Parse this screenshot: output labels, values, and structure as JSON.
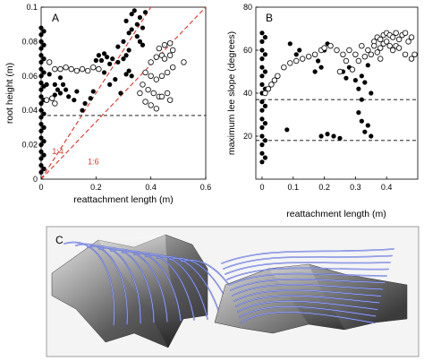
{
  "chart_data": [
    {
      "panel": "A",
      "type": "scatter",
      "xlabel": "reattachment length (m)",
      "ylabel": "root height (m)",
      "xlim": [
        0,
        0.6
      ],
      "ylim": [
        0,
        0.1
      ],
      "xticks": [
        "0",
        "0.2",
        "0.4",
        "0.6"
      ],
      "yticks": [
        "0",
        "0.02",
        "0.04",
        "0.06",
        "0.08",
        "0.1"
      ],
      "colors": {
        "filled": "#000000",
        "ref_line": "#e0312a",
        "hline": "#000000"
      },
      "hlines": [
        0.037
      ],
      "ref_lines": [
        {
          "label": "1:4",
          "slope": 0.25
        },
        {
          "label": "1:6",
          "slope": 0.1667
        }
      ],
      "series": [
        {
          "marker": "filled",
          "points": [
            [
              0.0,
              0.004
            ],
            [
              0.0,
              0.008
            ],
            [
              0.0,
              0.012
            ],
            [
              0.0,
              0.016
            ],
            [
              0.0,
              0.02
            ],
            [
              0.0,
              0.024
            ],
            [
              0.0,
              0.028
            ],
            [
              0.0,
              0.032
            ],
            [
              0.0,
              0.036
            ],
            [
              0.0,
              0.04
            ],
            [
              0.0,
              0.044
            ],
            [
              0.0,
              0.048
            ],
            [
              0.0,
              0.052
            ],
            [
              0.0,
              0.056
            ],
            [
              0.0,
              0.06
            ],
            [
              0.0,
              0.064
            ],
            [
              0.0,
              0.068
            ],
            [
              0.0,
              0.072
            ],
            [
              0.0,
              0.076
            ],
            [
              0.0,
              0.08
            ],
            [
              0.0,
              0.084
            ],
            [
              0.0,
              0.088
            ],
            [
              0.01,
              0.006
            ],
            [
              0.01,
              0.014
            ],
            [
              0.01,
              0.022
            ],
            [
              0.01,
              0.03
            ],
            [
              0.01,
              0.038
            ],
            [
              0.01,
              0.046
            ],
            [
              0.01,
              0.054
            ],
            [
              0.01,
              0.062
            ],
            [
              0.01,
              0.07
            ],
            [
              0.01,
              0.078
            ],
            [
              0.01,
              0.086
            ],
            [
              0.02,
              0.055
            ],
            [
              0.03,
              0.061
            ],
            [
              0.05,
              0.049
            ],
            [
              0.05,
              0.055
            ],
            [
              0.06,
              0.052
            ],
            [
              0.07,
              0.05
            ],
            [
              0.07,
              0.059
            ],
            [
              0.08,
              0.055
            ],
            [
              0.09,
              0.052
            ],
            [
              0.1,
              0.048
            ],
            [
              0.12,
              0.046
            ],
            [
              0.13,
              0.051
            ],
            [
              0.15,
              0.04
            ],
            [
              0.16,
              0.044
            ],
            [
              0.18,
              0.047
            ],
            [
              0.19,
              0.051
            ],
            [
              0.2,
              0.069
            ],
            [
              0.21,
              0.072
            ],
            [
              0.22,
              0.069
            ],
            [
              0.23,
              0.073
            ],
            [
              0.24,
              0.071
            ],
            [
              0.25,
              0.067
            ],
            [
              0.26,
              0.07
            ],
            [
              0.28,
              0.068
            ],
            [
              0.3,
              0.07
            ],
            [
              0.31,
              0.072
            ],
            [
              0.23,
              0.062
            ],
            [
              0.25,
              0.055
            ],
            [
              0.27,
              0.058
            ],
            [
              0.29,
              0.05
            ],
            [
              0.31,
              0.061
            ],
            [
              0.32,
              0.063
            ],
            [
              0.33,
              0.06
            ],
            [
              0.28,
              0.077
            ],
            [
              0.3,
              0.08
            ],
            [
              0.32,
              0.085
            ],
            [
              0.33,
              0.087
            ],
            [
              0.35,
              0.083
            ],
            [
              0.36,
              0.08
            ],
            [
              0.37,
              0.078
            ],
            [
              0.31,
              0.092
            ],
            [
              0.33,
              0.096
            ],
            [
              0.34,
              0.098
            ],
            [
              0.36,
              0.094
            ],
            [
              0.38,
              0.097
            ],
            [
              0.35,
              0.09
            ],
            [
              0.37,
              0.088
            ],
            [
              0.32,
              0.075
            ]
          ]
        },
        {
          "marker": "open",
          "points": [
            [
              0.03,
              0.068
            ],
            [
              0.05,
              0.064
            ],
            [
              0.07,
              0.064
            ],
            [
              0.09,
              0.065
            ],
            [
              0.11,
              0.064
            ],
            [
              0.13,
              0.063
            ],
            [
              0.15,
              0.064
            ],
            [
              0.17,
              0.063
            ],
            [
              0.19,
              0.065
            ],
            [
              0.21,
              0.064
            ],
            [
              0.37,
              0.055
            ],
            [
              0.39,
              0.052
            ],
            [
              0.41,
              0.05
            ],
            [
              0.43,
              0.048
            ],
            [
              0.38,
              0.062
            ],
            [
              0.4,
              0.06
            ],
            [
              0.42,
              0.058
            ],
            [
              0.44,
              0.06
            ],
            [
              0.46,
              0.062
            ],
            [
              0.48,
              0.065
            ],
            [
              0.38,
              0.045
            ],
            [
              0.4,
              0.043
            ],
            [
              0.42,
              0.041
            ],
            [
              0.44,
              0.048
            ],
            [
              0.46,
              0.05
            ],
            [
              0.47,
              0.046
            ],
            [
              0.4,
              0.068
            ],
            [
              0.42,
              0.071
            ],
            [
              0.44,
              0.072
            ],
            [
              0.45,
              0.07
            ],
            [
              0.47,
              0.072
            ],
            [
              0.48,
              0.075
            ],
            [
              0.45,
              0.078
            ],
            [
              0.43,
              0.076
            ],
            [
              0.47,
              0.079
            ],
            [
              0.52,
              0.068
            ],
            [
              0.02,
              0.046
            ],
            [
              0.04,
              0.047
            ],
            [
              0.05,
              0.044
            ],
            [
              0.36,
              0.05
            ]
          ]
        }
      ]
    },
    {
      "panel": "B",
      "type": "scatter",
      "xlabel": "reattachment length (m)",
      "ylabel": "maximum lee slope (degrees)",
      "xlim": [
        -0.02,
        0.5
      ],
      "ylim": [
        0,
        80
      ],
      "xticks": [
        "0",
        "0.1",
        "0.2",
        "0.3",
        "0.4"
      ],
      "yticks": [
        "20",
        "40",
        "60",
        "80"
      ],
      "hlines": [
        37,
        18
      ],
      "series": [
        {
          "marker": "filled",
          "points": [
            [
              0.0,
              8
            ],
            [
              0.0,
              12
            ],
            [
              0.0,
              16
            ],
            [
              0.0,
              20
            ],
            [
              0.0,
              24
            ],
            [
              0.0,
              28
            ],
            [
              0.0,
              32
            ],
            [
              0.0,
              36
            ],
            [
              0.0,
              40
            ],
            [
              0.0,
              44
            ],
            [
              0.0,
              48
            ],
            [
              0.0,
              52
            ],
            [
              0.0,
              56
            ],
            [
              0.0,
              60
            ],
            [
              0.0,
              64
            ],
            [
              0.0,
              68
            ],
            [
              0.01,
              10
            ],
            [
              0.01,
              18
            ],
            [
              0.01,
              26
            ],
            [
              0.01,
              34
            ],
            [
              0.01,
              42
            ],
            [
              0.01,
              50
            ],
            [
              0.01,
              58
            ],
            [
              0.01,
              66
            ],
            [
              0.08,
              23
            ],
            [
              0.09,
              63
            ],
            [
              0.11,
              58
            ],
            [
              0.12,
              60
            ],
            [
              0.17,
              50
            ],
            [
              0.18,
              55
            ],
            [
              0.19,
              52
            ],
            [
              0.2,
              60
            ],
            [
              0.21,
              63
            ],
            [
              0.22,
              62
            ],
            [
              0.19,
              20
            ],
            [
              0.21,
              21
            ],
            [
              0.23,
              20
            ],
            [
              0.25,
              19
            ],
            [
              0.26,
              50
            ],
            [
              0.27,
              47
            ],
            [
              0.28,
              52
            ],
            [
              0.3,
              46
            ],
            [
              0.31,
              42
            ],
            [
              0.32,
              48
            ],
            [
              0.33,
              45
            ],
            [
              0.35,
              40
            ],
            [
              0.34,
              53
            ],
            [
              0.32,
              37
            ],
            [
              0.31,
              31
            ],
            [
              0.32,
              27
            ],
            [
              0.33,
              22
            ],
            [
              0.34,
              25
            ],
            [
              0.35,
              20
            ]
          ]
        },
        {
          "marker": "open",
          "points": [
            [
              0.01,
              40
            ],
            [
              0.02,
              42
            ],
            [
              0.03,
              44
            ],
            [
              0.04,
              46
            ],
            [
              0.05,
              48
            ],
            [
              0.07,
              52
            ],
            [
              0.09,
              54
            ],
            [
              0.11,
              55
            ],
            [
              0.13,
              56
            ],
            [
              0.15,
              57
            ],
            [
              0.17,
              58
            ],
            [
              0.19,
              60
            ],
            [
              0.2,
              61
            ],
            [
              0.22,
              62
            ],
            [
              0.24,
              60
            ],
            [
              0.26,
              58
            ],
            [
              0.28,
              60
            ],
            [
              0.3,
              58
            ],
            [
              0.32,
              62
            ],
            [
              0.34,
              60
            ],
            [
              0.36,
              64
            ],
            [
              0.37,
              66
            ],
            [
              0.38,
              65
            ],
            [
              0.39,
              67
            ],
            [
              0.4,
              68
            ],
            [
              0.41,
              67
            ],
            [
              0.42,
              66
            ],
            [
              0.43,
              68
            ],
            [
              0.44,
              65
            ],
            [
              0.45,
              67
            ],
            [
              0.46,
              68
            ],
            [
              0.47,
              64
            ],
            [
              0.48,
              66
            ],
            [
              0.35,
              58
            ],
            [
              0.36,
              62
            ],
            [
              0.37,
              59
            ],
            [
              0.38,
              61
            ],
            [
              0.39,
              63
            ],
            [
              0.4,
              64
            ],
            [
              0.41,
              62
            ],
            [
              0.42,
              60
            ],
            [
              0.43,
              62
            ],
            [
              0.44,
              61
            ],
            [
              0.46,
              58
            ],
            [
              0.48,
              56
            ],
            [
              0.49,
              58
            ],
            [
              0.25,
              50
            ],
            [
              0.27,
              55
            ],
            [
              0.29,
              51
            ],
            [
              0.31,
              55
            ],
            [
              0.33,
              57
            ],
            [
              0.38,
              56
            ]
          ]
        }
      ]
    }
  ],
  "panel_c": {
    "label": "C",
    "colors": {
      "streamline": "#4d5fd6",
      "surface_light": "#c8c8c8",
      "surface_dark": "#3a3a3a"
    }
  }
}
